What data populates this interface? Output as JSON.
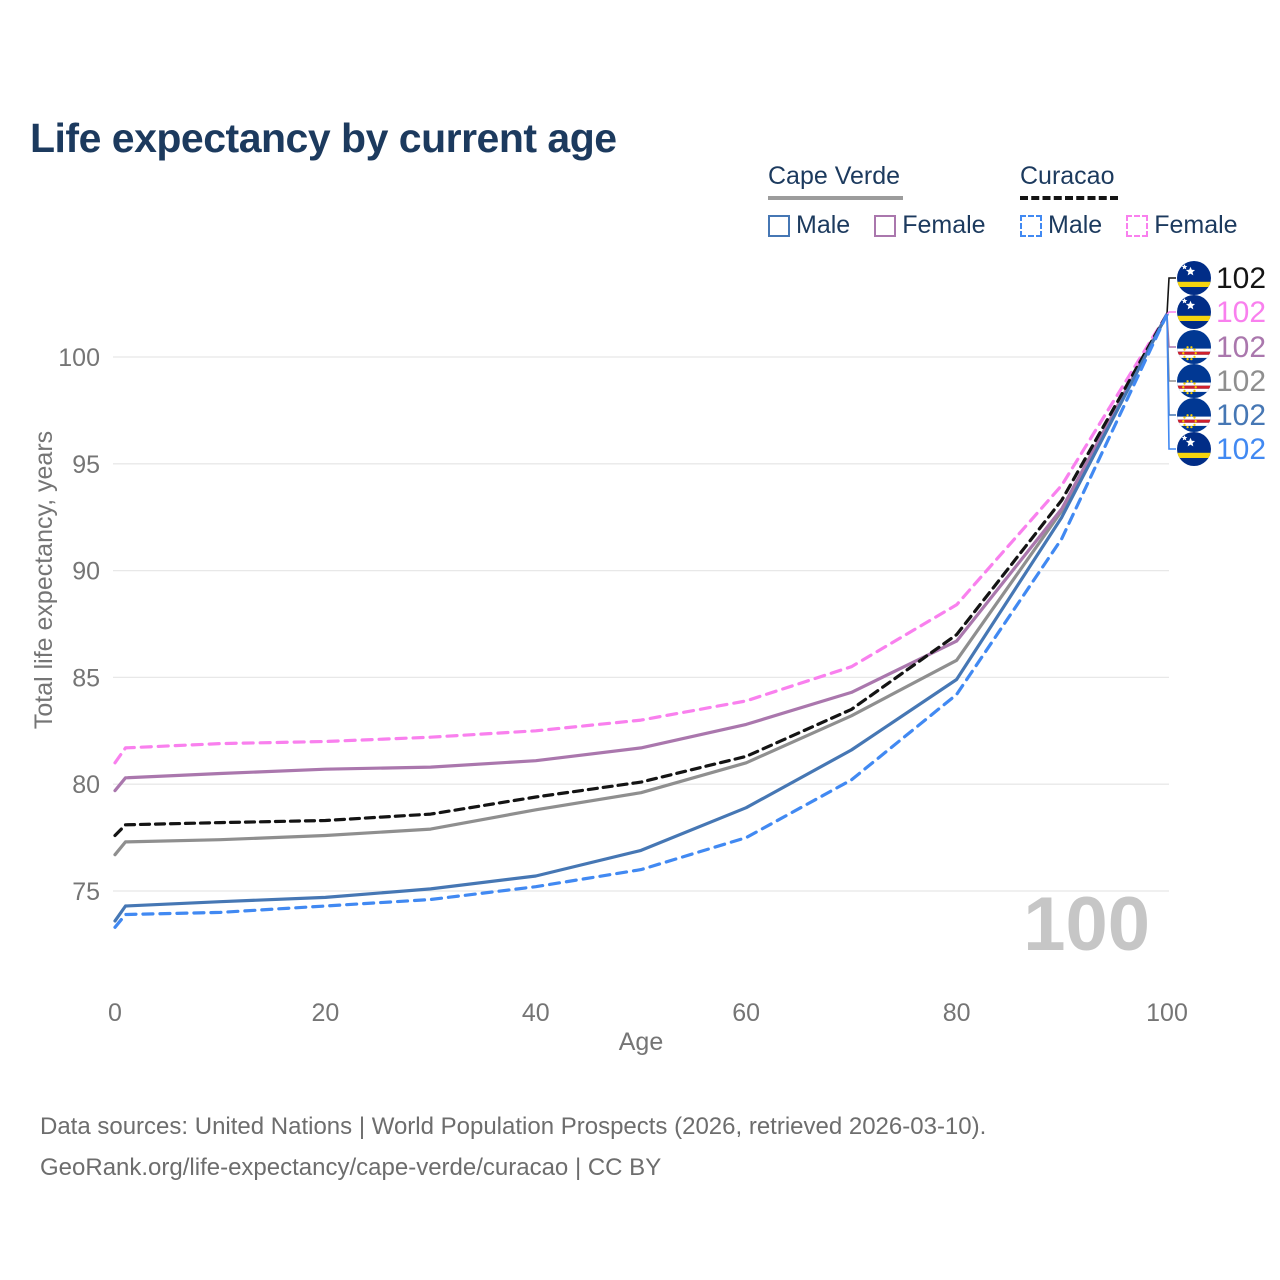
{
  "title": "Life expectancy by current age",
  "legend": {
    "groups": [
      {
        "label": "Cape Verde",
        "underline_style": "solid",
        "underline_color": "#9c9c9c",
        "items": [
          {
            "label": "Male",
            "color": "#4677b4",
            "dashed": false
          },
          {
            "label": "Female",
            "color": "#aa77ad",
            "dashed": false
          }
        ]
      },
      {
        "label": "Curacao",
        "underline_style": "dashed",
        "underline_color": "#141414",
        "items": [
          {
            "label": "Male",
            "color": "#4189f2",
            "dashed": true
          },
          {
            "label": "Female",
            "color": "#f980ee",
            "dashed": true
          }
        ]
      }
    ]
  },
  "watermark": "100",
  "footer": {
    "line1": "Data sources: United Nations | World Population Prospects (2026, retrieved 2026-03-10).",
    "line2": "GeoRank.org/life-expectancy/cape-verde/curacao | CC BY"
  },
  "colors": {
    "title_text": "#1c3a5e",
    "axis_text": "#757575",
    "gridline": "#e8e8e8",
    "watermark": "#c6c6c6",
    "footer_text": "#6d6d6d"
  },
  "chart_data": {
    "type": "line",
    "title": "Life expectancy by current age",
    "xlabel": "Age",
    "ylabel": "Total life expectancy, years",
    "xlim": [
      0,
      100
    ],
    "ylim": [
      72.5,
      103
    ],
    "x_ticks": [
      0,
      20,
      40,
      60,
      80,
      100
    ],
    "y_ticks": [
      75,
      80,
      85,
      90,
      95,
      100
    ],
    "grid": "horizontal-only",
    "legend_position": "top-right",
    "x": [
      0,
      1,
      10,
      20,
      30,
      40,
      50,
      60,
      70,
      80,
      90,
      100
    ],
    "series": [
      {
        "name": "Curacao",
        "sex": "all",
        "flag": "curacao",
        "color": "#141414",
        "dash": "9,6",
        "end_label": "102",
        "values": [
          77.6,
          78.1,
          78.2,
          78.3,
          78.6,
          79.4,
          80.1,
          81.3,
          83.5,
          87.0,
          93.3,
          102
        ]
      },
      {
        "name": "Curacao",
        "sex": "female",
        "flag": "curacao",
        "color": "#f980ee",
        "dash": "10,7",
        "end_label": "102",
        "values": [
          81.0,
          81.7,
          81.9,
          82.0,
          82.2,
          82.5,
          83.0,
          83.9,
          85.5,
          88.4,
          94.0,
          102
        ]
      },
      {
        "name": "Cape Verde",
        "sex": "female",
        "flag": "cape_verde",
        "color": "#aa77ad",
        "dash": null,
        "end_label": "102",
        "values": [
          79.7,
          80.3,
          80.5,
          80.7,
          80.8,
          81.1,
          81.7,
          82.8,
          84.3,
          86.7,
          92.9,
          102
        ]
      },
      {
        "name": "Cape Verde",
        "sex": "all",
        "flag": "cape_verde",
        "color": "#8f8f8f",
        "dash": null,
        "end_label": "102",
        "values": [
          76.7,
          77.3,
          77.4,
          77.6,
          77.9,
          78.8,
          79.6,
          81.0,
          83.2,
          85.8,
          92.8,
          102
        ]
      },
      {
        "name": "Cape Verde",
        "sex": "male",
        "flag": "cape_verde",
        "color": "#4677b4",
        "dash": null,
        "end_label": "102",
        "values": [
          73.6,
          74.3,
          74.5,
          74.7,
          75.1,
          75.7,
          76.9,
          78.9,
          81.6,
          84.9,
          92.5,
          102
        ]
      },
      {
        "name": "Curacao",
        "sex": "male",
        "flag": "curacao",
        "color": "#4189f2",
        "dash": "10,7",
        "end_label": "102",
        "values": [
          73.3,
          73.9,
          74.0,
          74.3,
          74.6,
          75.2,
          76.0,
          77.5,
          80.2,
          84.2,
          91.5,
          102
        ]
      }
    ]
  }
}
